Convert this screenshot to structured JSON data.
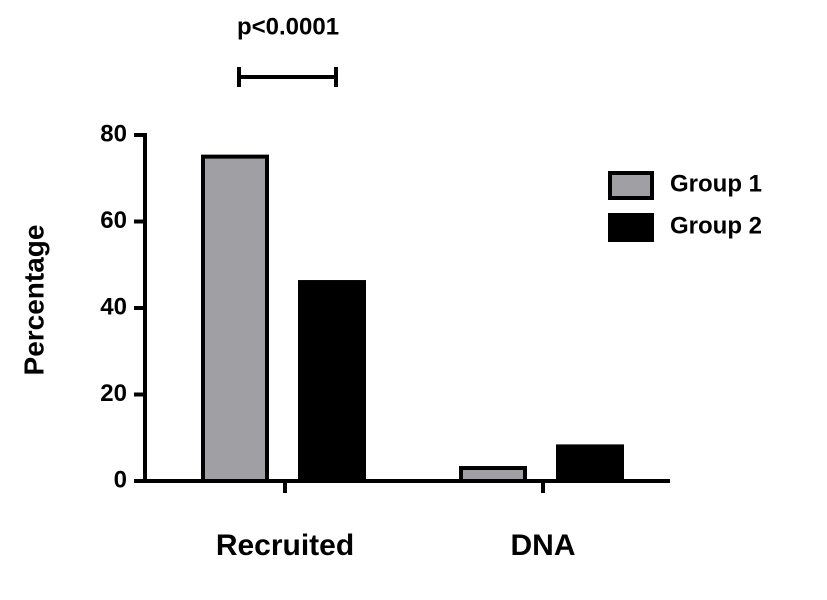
{
  "chart_data": {
    "type": "bar",
    "categories": [
      "Recruited",
      "DNA"
    ],
    "series": [
      {
        "name": "Group 1",
        "color": "#a0a0a4",
        "values": [
          75,
          3
        ]
      },
      {
        "name": "Group 2",
        "color": "#000000",
        "values": [
          46,
          8
        ]
      }
    ],
    "ylabel": "Percentage",
    "annotation": "p<0.0001",
    "ylim": [
      0,
      80
    ],
    "yticks": [
      0,
      20,
      40,
      60,
      80
    ],
    "legend": "upper right"
  }
}
